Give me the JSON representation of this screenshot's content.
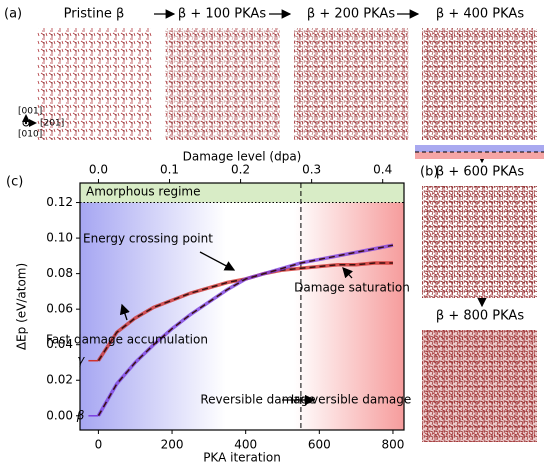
{
  "panel_labels": [
    "(a)",
    "(b)",
    "(c)"
  ],
  "snapshots": [
    "Pristine β",
    "β + 100 PKAs",
    "β + 200 PKAs",
    "β + 400 PKAs",
    "β + 600 PKAs",
    "β + 800 PKAs"
  ],
  "directions": [
    "[001]",
    "[010]",
    "[201]"
  ],
  "chart_data": {
    "type": "line",
    "xlabel": "PKA iteration",
    "ylabel": "ΔEp (eV/atom)",
    "x2label": "Damage level (dpa)",
    "x": [
      0,
      50,
      100,
      150,
      200,
      250,
      300,
      350,
      400,
      450,
      500,
      550,
      600,
      650,
      700,
      750,
      800
    ],
    "series": [
      {
        "name": "γ",
        "color": "#d0312d",
        "values": [
          0.031,
          0.047,
          0.055,
          0.061,
          0.065,
          0.069,
          0.072,
          0.075,
          0.077,
          0.08,
          0.082,
          0.083,
          0.084,
          0.085,
          0.085,
          0.086,
          0.086
        ]
      },
      {
        "name": "β",
        "color": "#7b3fe0",
        "values": [
          0.0,
          0.018,
          0.03,
          0.04,
          0.049,
          0.057,
          0.064,
          0.071,
          0.077,
          0.08,
          0.083,
          0.086,
          0.088,
          0.09,
          0.092,
          0.094,
          0.096
        ]
      }
    ],
    "xlim": [
      -50,
      830
    ],
    "xticks": [
      0,
      200,
      400,
      600,
      800
    ],
    "ylim": [
      -0.008,
      0.131
    ],
    "yticks": [
      {
        "value": 0,
        "label": "0.00"
      },
      {
        "value": 0.02,
        "label": "0.02"
      },
      {
        "value": 0.04,
        "label": "0.04"
      },
      {
        "value": 0.06,
        "label": "0.06"
      },
      {
        "value": 0.08,
        "label": "0.08"
      },
      {
        "value": 0.1,
        "label": "0.10"
      },
      {
        "value": 0.12,
        "label": "0.12"
      }
    ],
    "x2lim": [
      -0.026,
      0.43
    ],
    "x2ticks": [
      {
        "value": 0,
        "label": "0.0"
      },
      {
        "value": 0.1,
        "label": "0.1"
      },
      {
        "value": 0.2,
        "label": "0.2"
      },
      {
        "value": 0.3,
        "label": "0.3"
      },
      {
        "value": 0.4,
        "label": "0.4"
      }
    ],
    "vline": 550,
    "hline": 0.12,
    "annotations": [
      "Amorphous regime",
      "Energy crossing point",
      "Fast damage accumulation",
      "Damage saturation",
      "Reversible damage",
      "Irreversible damage"
    ]
  }
}
